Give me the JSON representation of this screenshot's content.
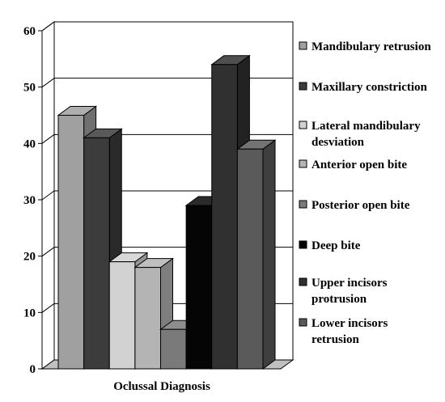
{
  "chart_data": {
    "type": "bar",
    "title": "",
    "xlabel": "Oclussal Diagnosis",
    "ylabel": "",
    "ylim": [
      0,
      60
    ],
    "yticks": [
      0,
      10,
      20,
      30,
      40,
      50,
      60
    ],
    "grid": "horizontal",
    "legend_position": "right",
    "series": [
      {
        "name": "Mandibulary retrusion",
        "value": 45,
        "color": "#a0a0a0"
      },
      {
        "name": "Maxillary constriction",
        "value": 41,
        "color": "#3c3c3c"
      },
      {
        "name": "Lateral mandibulary desviation",
        "value": 19,
        "color": "#d2d2d2"
      },
      {
        "name": "Anterior open bite",
        "value": 18,
        "color": "#b4b4b4"
      },
      {
        "name": "Posterior open bite",
        "value": 7,
        "color": "#7a7a7a"
      },
      {
        "name": "Deep bite",
        "value": 29,
        "color": "#050505"
      },
      {
        "name": "Upper incisors protrusion",
        "value": 54,
        "color": "#303030"
      },
      {
        "name": "Lower incisors retrusion",
        "value": 39,
        "color": "#5a5a5a"
      }
    ]
  }
}
